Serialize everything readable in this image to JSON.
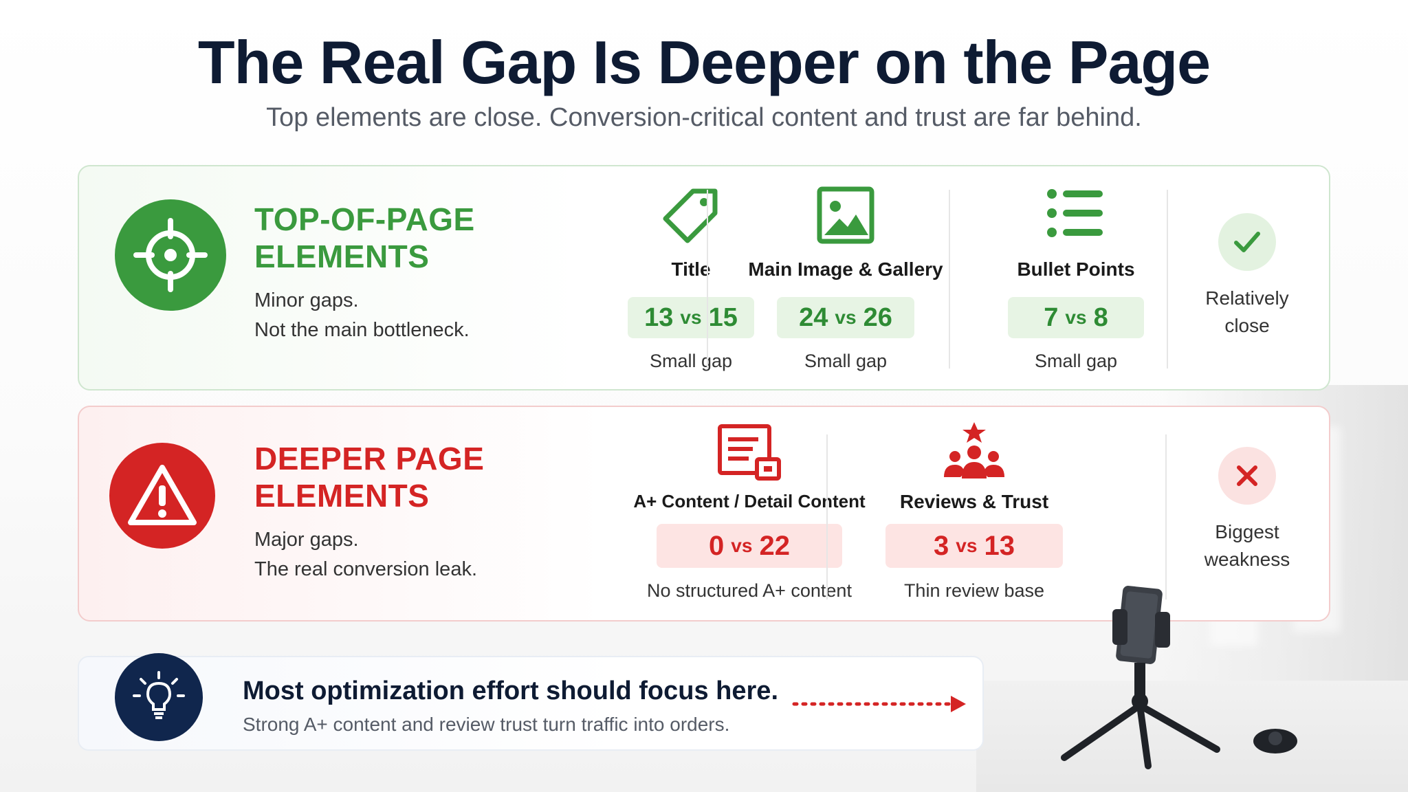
{
  "headline": "The Real Gap Is Deeper on the Page",
  "subhead": "Top elements are close. Conversion-critical content and trust are far behind.",
  "colors": {
    "green": "#3a9a3e",
    "red": "#d42424",
    "navy": "#10264d"
  },
  "top_section": {
    "icon": "crosshair-target-icon",
    "title_line1": "TOP-OF-PAGE",
    "title_line2": "ELEMENTS",
    "desc_line1": "Minor gaps.",
    "desc_line2": "Not the main bottleneck.",
    "metrics": [
      {
        "icon": "tag-icon",
        "label": "Title",
        "left": "13",
        "vs": "vs",
        "right": "15",
        "note": "Small gap"
      },
      {
        "icon": "image-gallery-icon",
        "label": "Main Image & Gallery",
        "left": "24",
        "vs": "vs",
        "right": "26",
        "note": "Small gap"
      },
      {
        "icon": "bullet-list-icon",
        "label": "Bullet Points",
        "left": "7",
        "vs": "vs",
        "right": "8",
        "note": "Small gap"
      }
    ],
    "status_icon": "check-icon",
    "status_line1": "Relatively",
    "status_line2": "close"
  },
  "deep_section": {
    "icon": "warning-triangle-icon",
    "title_line1": "DEEPER PAGE",
    "title_line2": "ELEMENTS",
    "desc_line1": "Major gaps.",
    "desc_line2": "The real conversion leak.",
    "metrics": [
      {
        "icon": "document-content-icon",
        "label": "A+ Content / Detail Content",
        "left": "0",
        "vs": "vs",
        "right": "22",
        "note": "No structured A+ content"
      },
      {
        "icon": "people-star-icon",
        "label": "Reviews & Trust",
        "left": "3",
        "vs": "vs",
        "right": "13",
        "note": "Thin review base"
      }
    ],
    "status_icon": "x-icon",
    "status_line1": "Biggest",
    "status_line2": "weakness"
  },
  "callout": {
    "icon": "lightbulb-icon",
    "title": "Most optimization effort should focus here.",
    "subtitle": "Strong A+ content and review trust turn traffic into orders.",
    "arrow_icon": "dotted-arrow-icon"
  }
}
